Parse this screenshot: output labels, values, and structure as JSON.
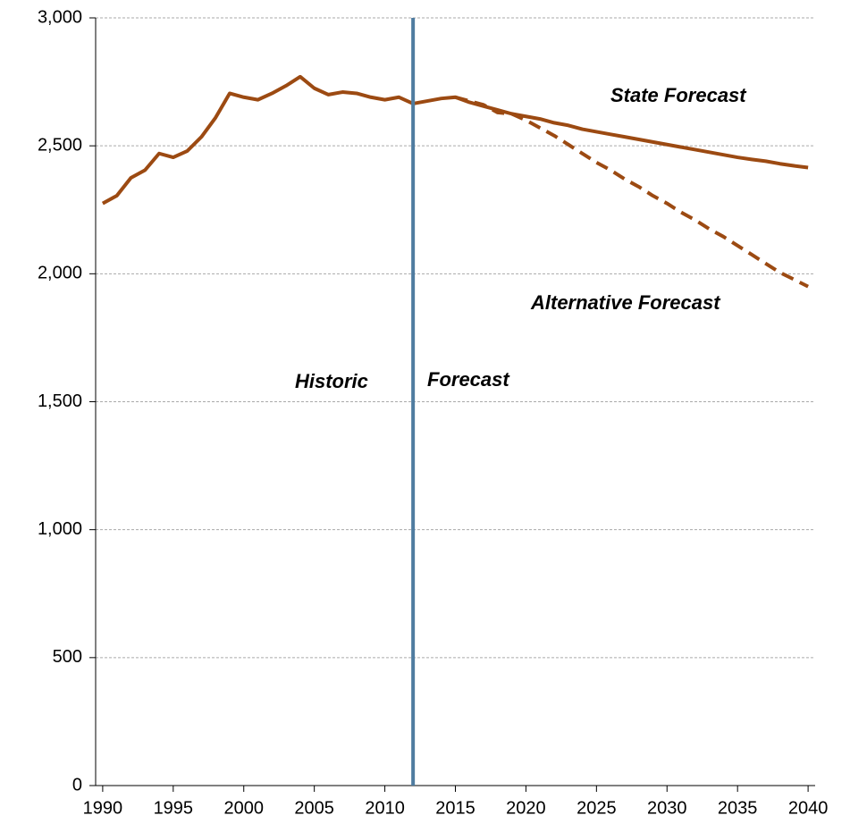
{
  "chart_data": {
    "type": "line",
    "x": [
      1990,
      1991,
      1992,
      1993,
      1994,
      1995,
      1996,
      1997,
      1998,
      1999,
      2000,
      2001,
      2002,
      2003,
      2004,
      2005,
      2006,
      2007,
      2008,
      2009,
      2010,
      2011,
      2012,
      2013,
      2014,
      2015,
      2016,
      2017,
      2018,
      2019,
      2020,
      2021,
      2022,
      2023,
      2024,
      2025,
      2026,
      2027,
      2028,
      2029,
      2030,
      2031,
      2032,
      2033,
      2034,
      2035,
      2036,
      2037,
      2038,
      2039,
      2040
    ],
    "series": [
      {
        "name": "State Forecast",
        "color": "#9c4a12",
        "style": "solid",
        "values": [
          2275,
          2305,
          2375,
          2405,
          2470,
          2455,
          2480,
          2535,
          2610,
          2705,
          2690,
          2680,
          2705,
          2735,
          2770,
          2725,
          2700,
          2710,
          2705,
          2690,
          2680,
          2690,
          2665,
          2675,
          2685,
          2690,
          2670,
          2655,
          2640,
          2625,
          2615,
          2605,
          2590,
          2580,
          2565,
          2555,
          2545,
          2535,
          2525,
          2515,
          2505,
          2495,
          2485,
          2475,
          2465,
          2455,
          2447,
          2440,
          2430,
          2422,
          2415
        ]
      },
      {
        "name": "Alternative Forecast",
        "color": "#9c4a12",
        "style": "dashed",
        "values": [
          null,
          null,
          null,
          null,
          null,
          null,
          null,
          null,
          null,
          null,
          null,
          null,
          null,
          null,
          null,
          null,
          null,
          null,
          null,
          null,
          null,
          null,
          null,
          null,
          null,
          2690,
          2675,
          2660,
          2630,
          2625,
          2600,
          2570,
          2540,
          2505,
          2470,
          2435,
          2405,
          2370,
          2340,
          2305,
          2275,
          2240,
          2210,
          2175,
          2145,
          2110,
          2075,
          2040,
          2005,
          1978,
          1950
        ]
      }
    ],
    "annotations": [
      "Historic",
      "Forecast"
    ],
    "divider": {
      "x": 2012,
      "color": "#4f7ca0"
    },
    "xlim": [
      1989.5,
      2040.5
    ],
    "xticks": [
      1990,
      1995,
      2000,
      2005,
      2010,
      2015,
      2020,
      2025,
      2030,
      2035,
      2040
    ],
    "ylim": [
      0,
      3000
    ],
    "yticks": [
      0,
      500,
      {
        "value": 1000,
        "label": "1,000"
      },
      {
        "value": 1500,
        "label": "1,500"
      },
      {
        "value": 2000,
        "label": "2,000"
      },
      {
        "value": 2500,
        "label": "2,500"
      },
      {
        "value": 3000,
        "label": "3,000"
      }
    ],
    "grid": true
  }
}
